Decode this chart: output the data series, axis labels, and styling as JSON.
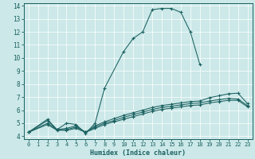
{
  "xlabel": "Humidex (Indice chaleur)",
  "xlim": [
    -0.5,
    23.5
  ],
  "ylim": [
    3.8,
    14.2
  ],
  "xticks": [
    0,
    1,
    2,
    3,
    4,
    5,
    6,
    7,
    8,
    9,
    10,
    11,
    12,
    13,
    14,
    15,
    16,
    17,
    18,
    19,
    20,
    21,
    22,
    23
  ],
  "yticks": [
    4,
    5,
    6,
    7,
    8,
    9,
    10,
    11,
    12,
    13,
    14
  ],
  "bg_color": "#cce8e8",
  "grid_color": "#b0d4d4",
  "line_color": "#1a6060",
  "lines": [
    {
      "x": [
        0,
        2,
        3,
        4,
        5,
        6,
        7,
        8,
        10,
        11,
        12,
        13,
        14,
        15,
        16,
        17,
        18
      ],
      "y": [
        4.3,
        5.3,
        4.5,
        5.0,
        4.9,
        4.2,
        5.0,
        7.7,
        10.5,
        11.5,
        12.0,
        13.7,
        13.8,
        13.8,
        13.5,
        12.0,
        9.5
      ]
    },
    {
      "x": [
        0,
        2,
        3,
        4,
        5,
        6,
        7,
        8,
        9,
        10,
        11,
        12,
        13,
        14,
        15,
        16,
        17,
        18,
        19,
        20,
        21,
        22,
        23
      ],
      "y": [
        4.3,
        5.2,
        4.5,
        4.6,
        4.8,
        4.3,
        4.8,
        5.1,
        5.35,
        5.6,
        5.8,
        6.0,
        6.2,
        6.35,
        6.45,
        6.55,
        6.65,
        6.7,
        6.95,
        7.1,
        7.25,
        7.3,
        6.5
      ]
    },
    {
      "x": [
        0,
        2,
        3,
        4,
        5,
        6,
        7,
        8,
        9,
        10,
        11,
        12,
        13,
        14,
        15,
        16,
        17,
        18,
        19,
        20,
        21,
        22,
        23
      ],
      "y": [
        4.3,
        5.0,
        4.5,
        4.5,
        4.7,
        4.3,
        4.7,
        5.0,
        5.2,
        5.45,
        5.65,
        5.85,
        6.05,
        6.2,
        6.3,
        6.4,
        6.5,
        6.55,
        6.7,
        6.8,
        6.9,
        6.85,
        6.35
      ]
    },
    {
      "x": [
        0,
        2,
        3,
        4,
        5,
        6,
        7,
        8,
        9,
        10,
        11,
        12,
        13,
        14,
        15,
        16,
        17,
        18,
        19,
        20,
        21,
        22,
        23
      ],
      "y": [
        4.3,
        4.9,
        4.45,
        4.45,
        4.6,
        4.3,
        4.6,
        4.9,
        5.1,
        5.3,
        5.5,
        5.7,
        5.9,
        6.05,
        6.15,
        6.25,
        6.35,
        6.4,
        6.55,
        6.65,
        6.75,
        6.75,
        6.25
      ]
    }
  ]
}
